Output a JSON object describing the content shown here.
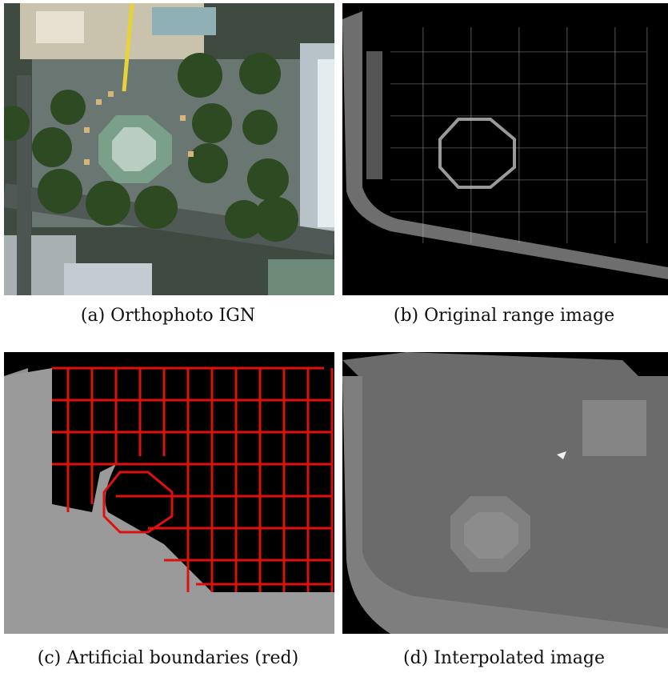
{
  "figure": {
    "panels": [
      {
        "id": "a",
        "caption": "(a) Orthophoto IGN",
        "content": "aerial orthophoto of a city square with octagonal fountain, trees and buildings"
      },
      {
        "id": "b",
        "caption": "(b) Original range image",
        "content": "sparse grey point range image on black"
      },
      {
        "id": "c",
        "caption": "(c) Artificial boundaries (red)",
        "content": "grey range image with red cell boundaries network"
      },
      {
        "id": "d",
        "caption": "(d) Interpolated image",
        "content": "smooth interpolated grey range image"
      }
    ]
  },
  "colors": {
    "boundary_red": "#e01010",
    "range_grey": "#8a8a8a",
    "background_black": "#000000"
  }
}
